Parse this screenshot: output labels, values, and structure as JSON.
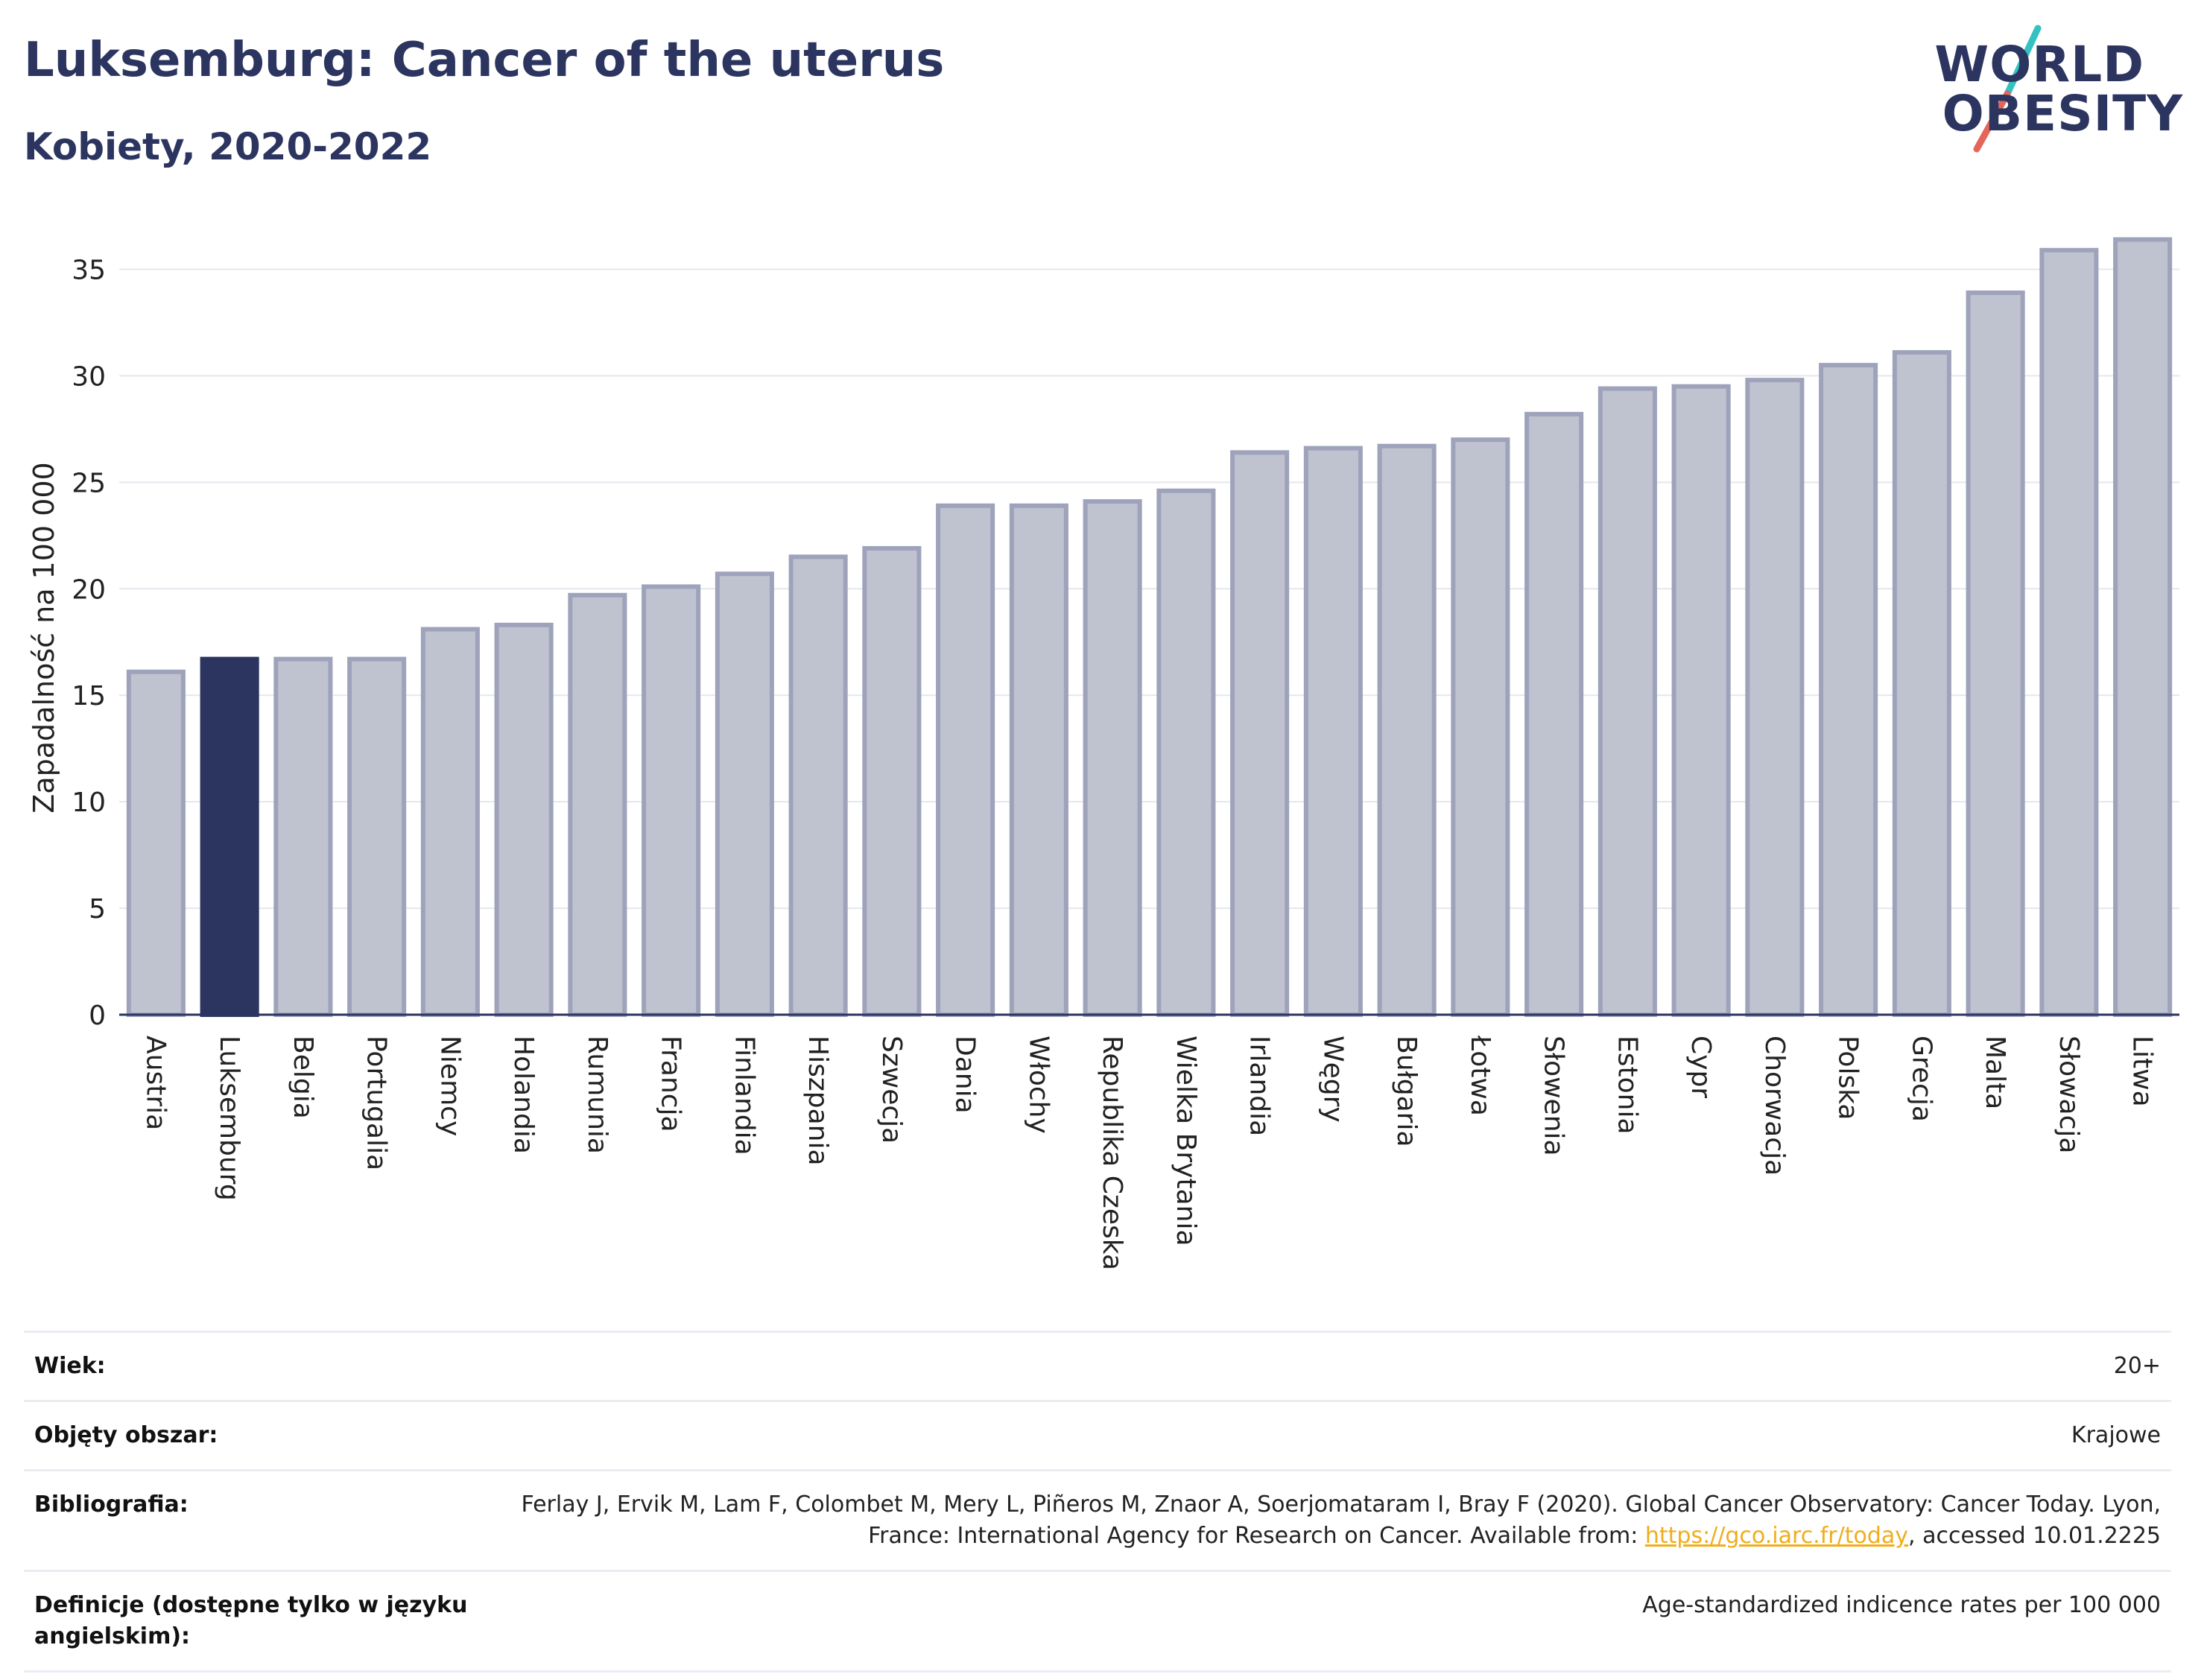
{
  "header": {
    "title": "Luksemburg: Cancer of the uterus",
    "subtitle": "Kobiety, 2020-2022",
    "logo_line1": "WORLD",
    "logo_line2": "OBESITY"
  },
  "colors": {
    "highlight": "#2c3560",
    "bar": "#bfc2cf",
    "bar_border": "#9ea3bb",
    "logo_teal": "#35c1c1",
    "logo_red": "#e4655a",
    "link": "#f0ad1d"
  },
  "chart_data": {
    "type": "bar",
    "ylabel": "Zapadalność na 100 000",
    "ylim": [
      0,
      37.5
    ],
    "yticks": [
      0,
      5,
      10,
      15,
      20,
      25,
      30,
      35
    ],
    "grid": true,
    "highlight_category": "Luksemburg",
    "categories": [
      "Austria",
      "Luksemburg",
      "Belgia",
      "Portugalia",
      "Niemcy",
      "Holandia",
      "Rumunia",
      "Francja",
      "Finlandia",
      "Hiszpania",
      "Szwecja",
      "Dania",
      "Włochy",
      "Republika Czeska",
      "Wielka Brytania",
      "Irlandia",
      "Węgry",
      "Bułgaria",
      "Łotwa",
      "Słowenia",
      "Estonia",
      "Cypr",
      "Chorwacja",
      "Polska",
      "Grecja",
      "Malta",
      "Słowacja",
      "Litwa"
    ],
    "values": [
      16.1,
      16.7,
      16.7,
      16.7,
      18.1,
      18.3,
      19.7,
      20.1,
      20.7,
      21.5,
      21.9,
      23.9,
      23.9,
      24.1,
      24.6,
      26.4,
      26.6,
      26.7,
      27.0,
      28.2,
      29.4,
      29.5,
      29.8,
      30.5,
      31.1,
      33.9,
      35.9,
      36.4
    ]
  },
  "info_table": {
    "age_label": "Wiek:",
    "age_value": "20+",
    "area_label": "Objęty obszar:",
    "area_value": "Krajowe",
    "bib_label": "Bibliografia:",
    "bib_text": "Ferlay J, Ervik M, Lam F, Colombet M, Mery L, Piñeros M, Znaor A, Soerjomataram I, Bray F (2020). Global Cancer Observatory: Cancer Today. Lyon, France: International Agency for Research on Cancer. Available from: ",
    "bib_link": "https://gco.iarc.fr/today",
    "bib_suffix": ", accessed 10.01.2225",
    "def_label": "Definicje (dostępne tylko w języku angielskim):",
    "def_value": "Age-standardized indicence rates per 100 000"
  }
}
